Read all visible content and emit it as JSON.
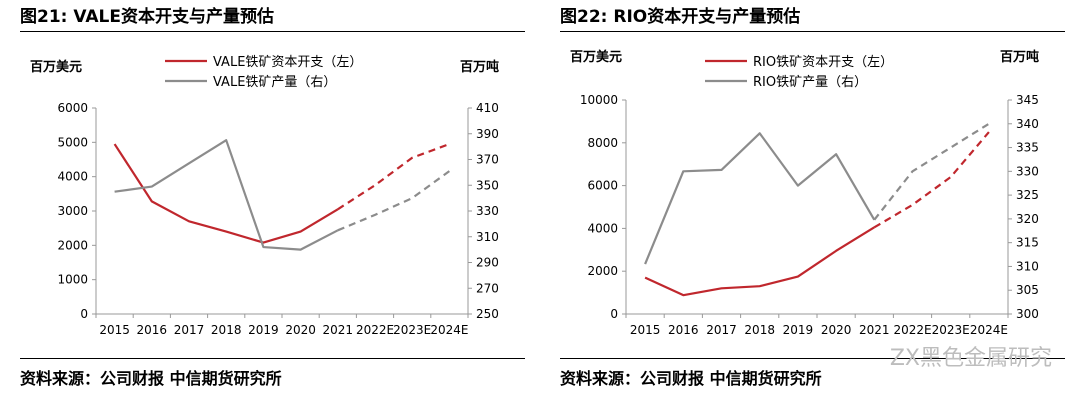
{
  "figures": [
    {
      "title": "图21:  VALE资本开支与产量预估",
      "source": "资料来源：公司财报  中信期货研究所",
      "left_unit": "百万美元",
      "right_unit": "百万吨",
      "colors": {
        "capex": "#c0272d",
        "production": "#8c8c8c"
      }
    },
    {
      "title": "图22:  RIO资本开支与产量预估",
      "source": "资料来源：公司财报  中信期货研究所",
      "left_unit": "百万美元",
      "right_unit": "百万吨",
      "colors": {
        "capex": "#c0272d",
        "production": "#8c8c8c"
      }
    }
  ],
  "watermark": "ZX黑色金属研究",
  "chart_data": [
    {
      "type": "line",
      "categories": [
        "2015",
        "2016",
        "2017",
        "2018",
        "2019",
        "2020",
        "2021",
        "2022E",
        "2023E",
        "2024E"
      ],
      "series": [
        {
          "name": "VALE铁矿资本开支（左）",
          "axis": "left",
          "color": "#c0272d",
          "values": [
            4950,
            3280,
            2700,
            2400,
            2080,
            2400,
            3050,
            3750,
            4550,
            4950
          ],
          "estimate_from_index": 6
        },
        {
          "name": "VALE铁矿产量（右）",
          "axis": "right",
          "color": "#8c8c8c",
          "values": [
            345,
            349,
            367,
            385,
            302,
            300,
            315,
            327,
            340,
            361
          ],
          "estimate_from_index": 6
        }
      ],
      "y_left": {
        "min": 0,
        "max": 6000,
        "ticks": [
          0,
          1000,
          2000,
          3000,
          4000,
          5000,
          6000
        ]
      },
      "y_right": {
        "min": 250,
        "max": 410,
        "ticks": [
          250,
          270,
          290,
          310,
          330,
          350,
          370,
          390,
          410
        ]
      },
      "grid": false,
      "legend": "top"
    },
    {
      "type": "line",
      "categories": [
        "2015",
        "2016",
        "2017",
        "2018",
        "2019",
        "2020",
        "2021",
        "2022E",
        "2023E",
        "2024E"
      ],
      "series": [
        {
          "name": "RIO铁矿资本开支（左）",
          "axis": "left",
          "color": "#c0272d",
          "values": [
            1700,
            880,
            1200,
            1300,
            1750,
            2950,
            4050,
            5100,
            6400,
            8500
          ],
          "estimate_from_index": 6
        },
        {
          "name": "RIO铁矿产量（右）",
          "axis": "right",
          "color": "#8c8c8c",
          "values": [
            310.5,
            330,
            330.3,
            338,
            327,
            333.6,
            319.8,
            330,
            335,
            340
          ],
          "estimate_from_index": 6
        }
      ],
      "y_left": {
        "min": 0,
        "max": 10000,
        "ticks": [
          0,
          2000,
          4000,
          6000,
          8000,
          10000
        ]
      },
      "y_right": {
        "min": 300,
        "max": 345,
        "ticks": [
          300,
          305,
          310,
          315,
          320,
          325,
          330,
          335,
          340,
          345
        ]
      },
      "grid": false,
      "legend": "top"
    }
  ]
}
